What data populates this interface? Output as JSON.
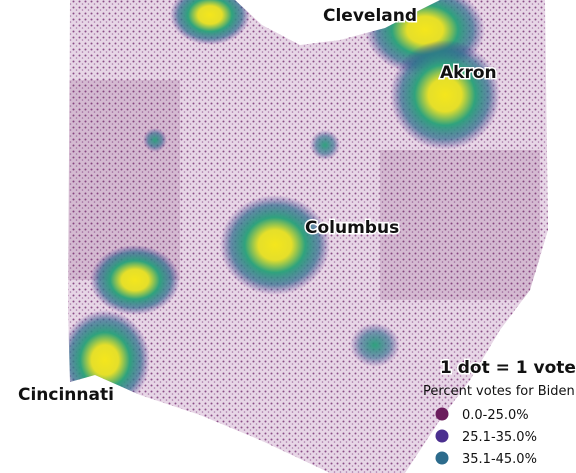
{
  "labels": [
    "Cleveland",
    "Akron",
    "Columbus",
    "Cincinnati"
  ],
  "legend": {
    "title": "1 dot = 1 vote",
    "subtitle": "Percent votes for Biden",
    "items": [
      {
        "label": "0.0-25.0%",
        "color": "#6b1d5c"
      },
      {
        "label": "25.1-35.0%",
        "color": "#4b2f8f"
      },
      {
        "label": "35.1-45.0%",
        "color": "#2c6b8c"
      }
    ]
  }
}
